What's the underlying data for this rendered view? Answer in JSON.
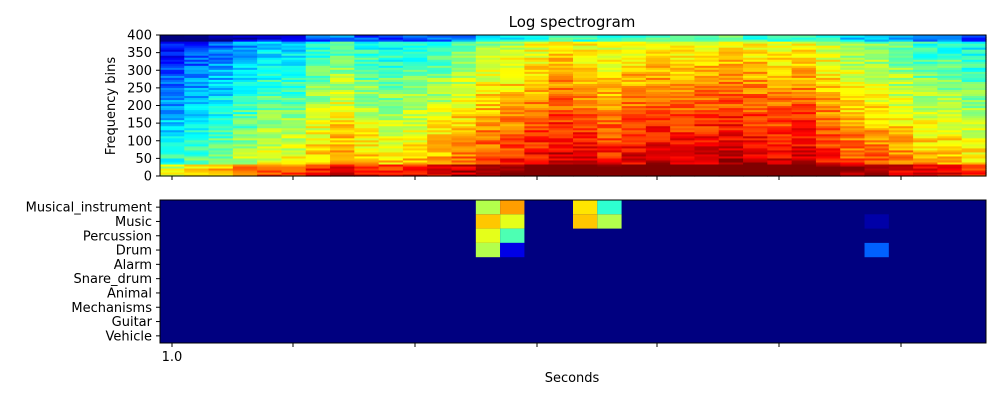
{
  "chart_data": [
    {
      "type": "heatmap",
      "title": "Log spectrogram",
      "ylabel": "Frequency bins",
      "xlabel": "",
      "ylim": [
        0,
        400
      ],
      "y_ticks": [
        "0",
        "50",
        "100",
        "150",
        "200",
        "250",
        "300",
        "350",
        "400"
      ],
      "colormap": "jet",
      "n_time_frames": 34,
      "energy_profile": [
        0.35,
        0.4,
        0.45,
        0.5,
        0.55,
        0.55,
        0.62,
        0.68,
        0.62,
        0.6,
        0.62,
        0.65,
        0.7,
        0.75,
        0.78,
        0.82,
        0.86,
        0.84,
        0.8,
        0.84,
        0.86,
        0.85,
        0.86,
        0.88,
        0.86,
        0.84,
        0.86,
        0.8,
        0.74,
        0.72,
        0.68,
        0.64,
        0.64,
        0.6
      ]
    },
    {
      "type": "heatmap",
      "xlabel": "Seconds",
      "x_ticks": [
        "1.0",
        "",
        "",
        "",
        "",
        "",
        "",
        ""
      ],
      "colormap": "jet",
      "labels": [
        "Musical_instrument",
        "Music",
        "Percussion",
        "Drum",
        "Alarm",
        "Snare_drum",
        "Animal",
        "Mechanisms",
        "Guitar",
        "Vehicle"
      ],
      "n_time_frames": 34,
      "active_cells": [
        {
          "label": "Musical_instrument",
          "frame": 13,
          "value": 0.55
        },
        {
          "label": "Musical_instrument",
          "frame": 14,
          "value": 0.72
        },
        {
          "label": "Music",
          "frame": 13,
          "value": 0.68
        },
        {
          "label": "Music",
          "frame": 14,
          "value": 0.6
        },
        {
          "label": "Percussion",
          "frame": 13,
          "value": 0.6
        },
        {
          "label": "Percussion",
          "frame": 14,
          "value": 0.45
        },
        {
          "label": "Drum",
          "frame": 13,
          "value": 0.55
        },
        {
          "label": "Drum",
          "frame": 14,
          "value": 0.1
        },
        {
          "label": "Musical_instrument",
          "frame": 17,
          "value": 0.65
        },
        {
          "label": "Musical_instrument",
          "frame": 18,
          "value": 0.42
        },
        {
          "label": "Music",
          "frame": 17,
          "value": 0.68
        },
        {
          "label": "Music",
          "frame": 18,
          "value": 0.55
        },
        {
          "label": "Music",
          "frame": 29,
          "value": 0.04
        },
        {
          "label": "Drum",
          "frame": 29,
          "value": 0.22
        }
      ]
    }
  ]
}
